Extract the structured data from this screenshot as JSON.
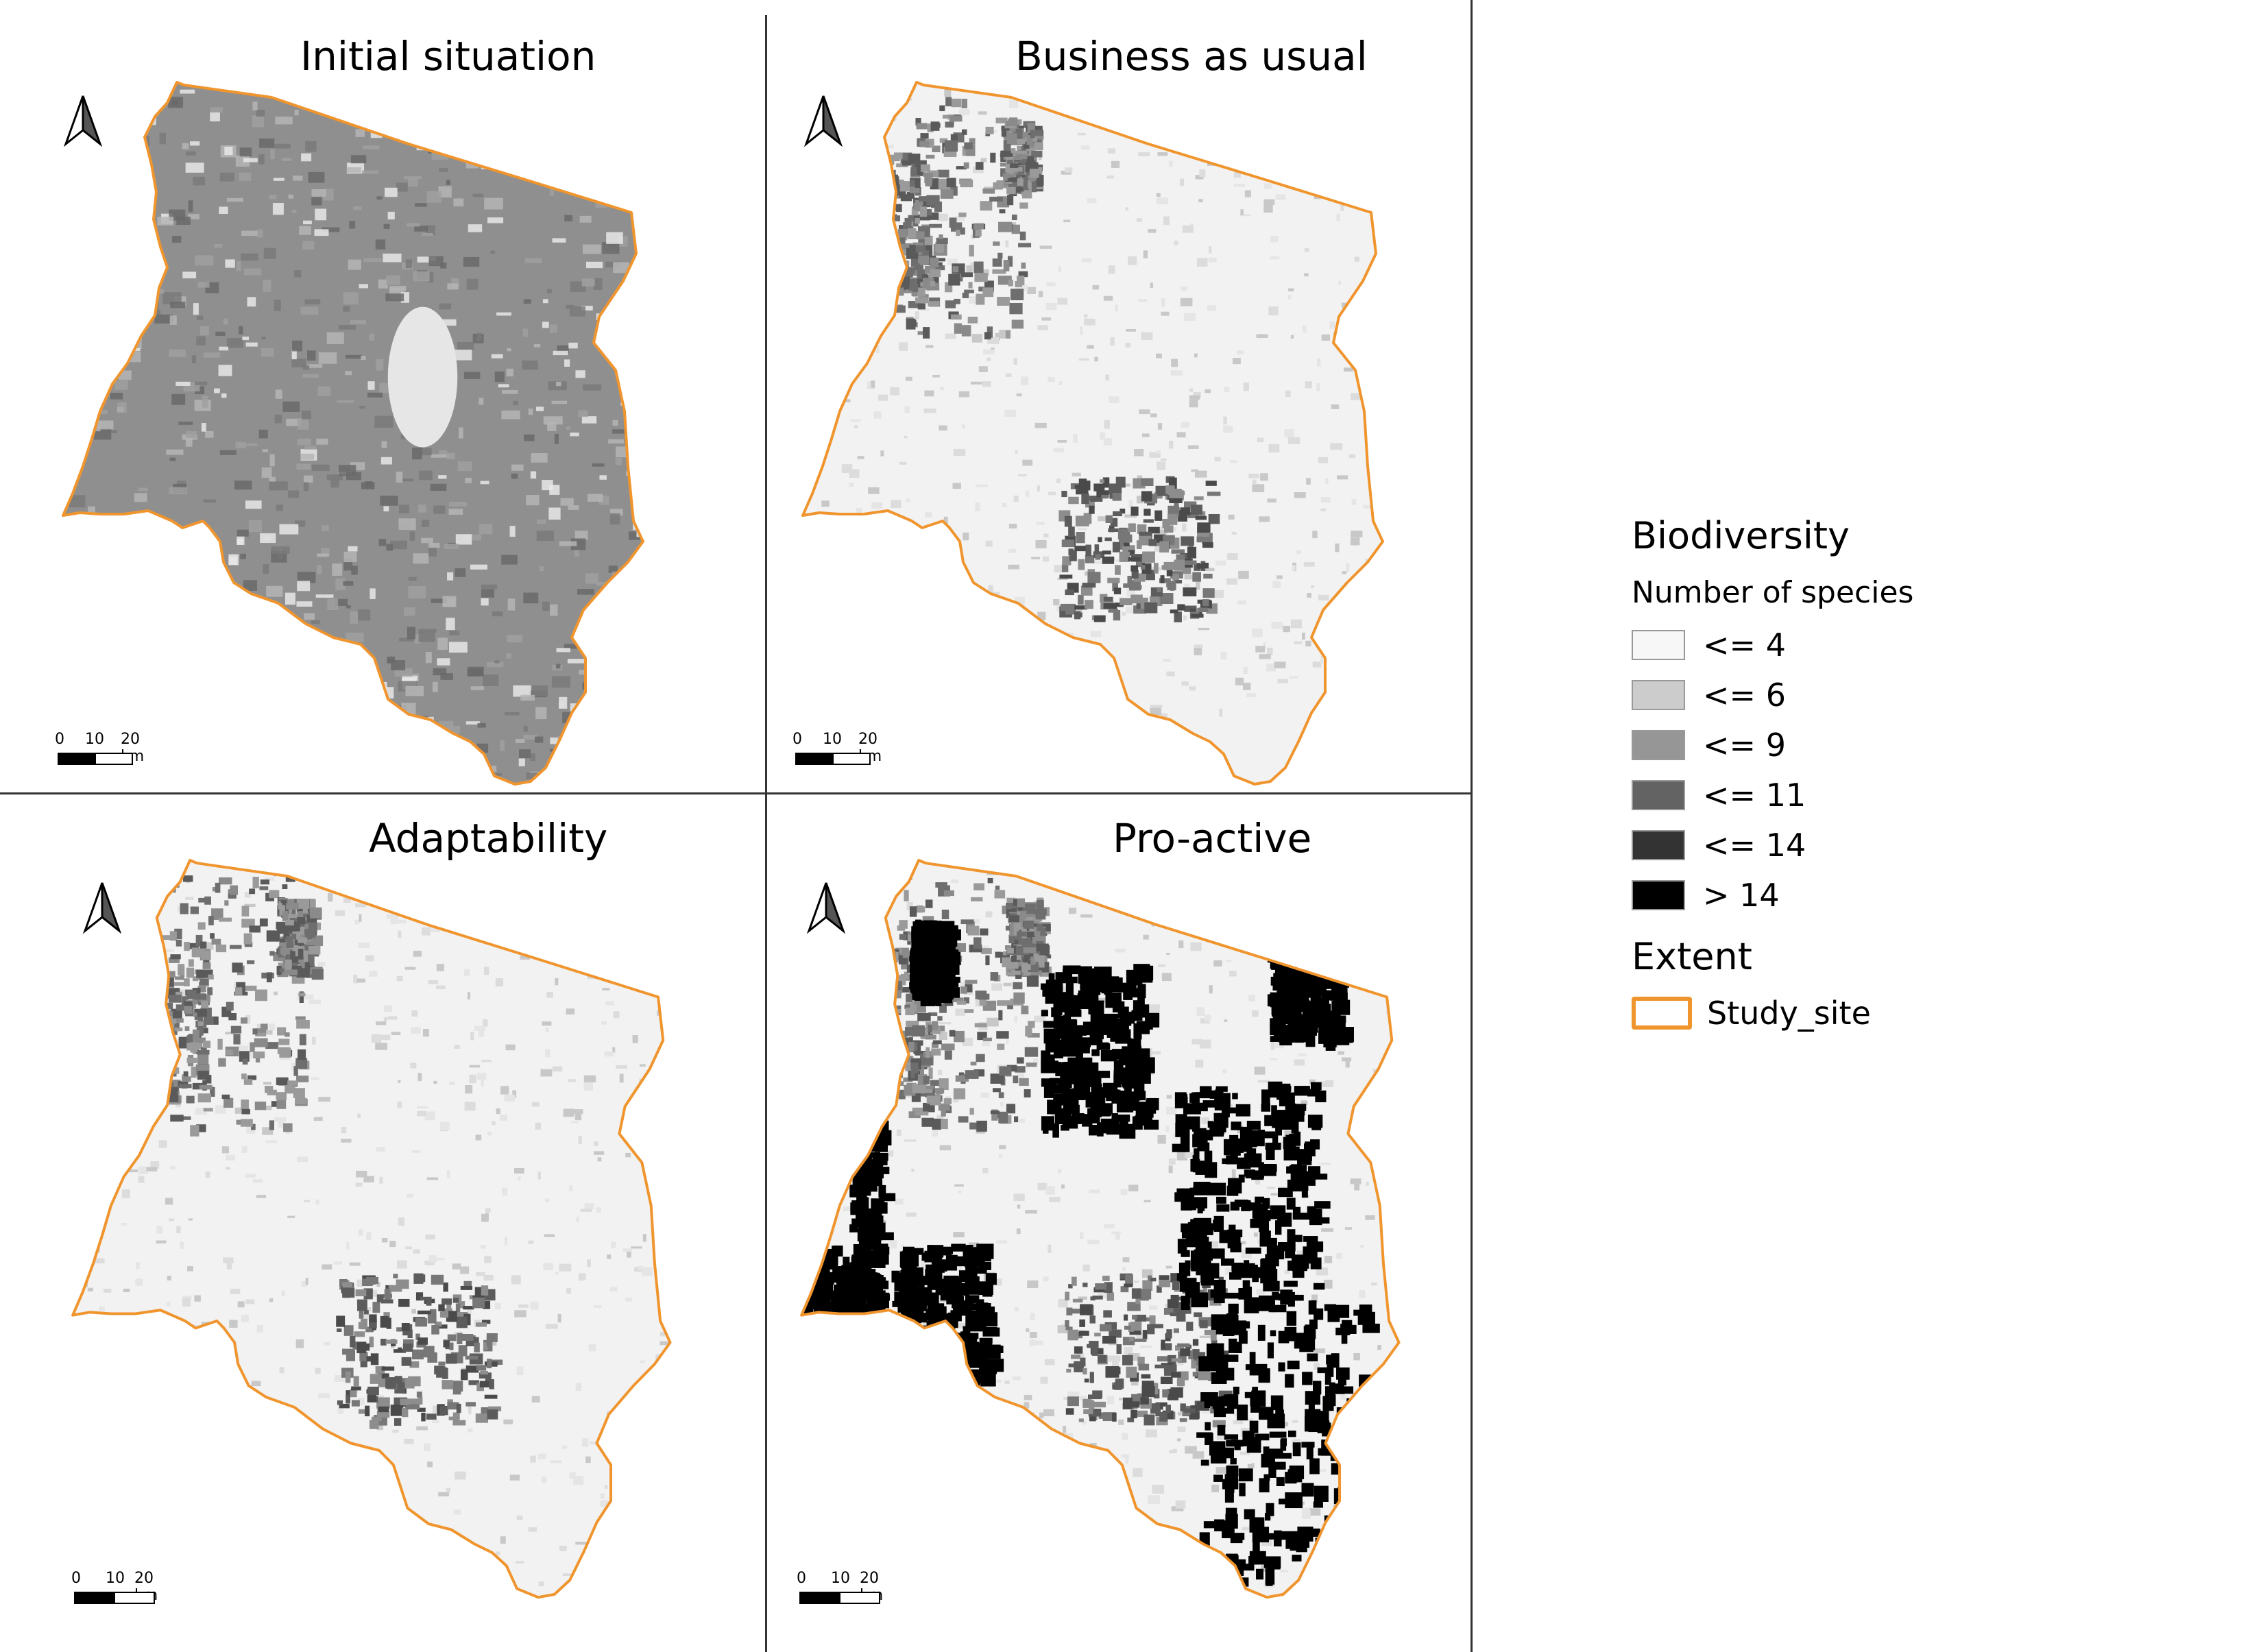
{
  "panels": [
    {
      "id": "initial",
      "title": "Initial situation"
    },
    {
      "id": "bau",
      "title": "Business as usual"
    },
    {
      "id": "adapt",
      "title": "Adaptability"
    },
    {
      "id": "proactive",
      "title": "Pro-active"
    }
  ],
  "scale_bar": {
    "labels": [
      "0",
      "10",
      "20 km"
    ]
  },
  "legend": {
    "title": "Biodiversity",
    "subtitle": "Number of species",
    "classes": [
      {
        "label": "<= 4",
        "color": "#f7f7f7"
      },
      {
        "label": "<= 6",
        "color": "#cccccc"
      },
      {
        "label": "<= 9",
        "color": "#969696"
      },
      {
        "label": "<= 11",
        "color": "#636363"
      },
      {
        "label": "<= 14",
        "color": "#333333"
      },
      {
        "label": "> 14",
        "color": "#000000"
      }
    ],
    "extent_title": "Extent",
    "extent_label": "Study_site",
    "extent_color": "#f0952e"
  },
  "icons": {
    "north_arrow": "north-arrow-icon"
  }
}
